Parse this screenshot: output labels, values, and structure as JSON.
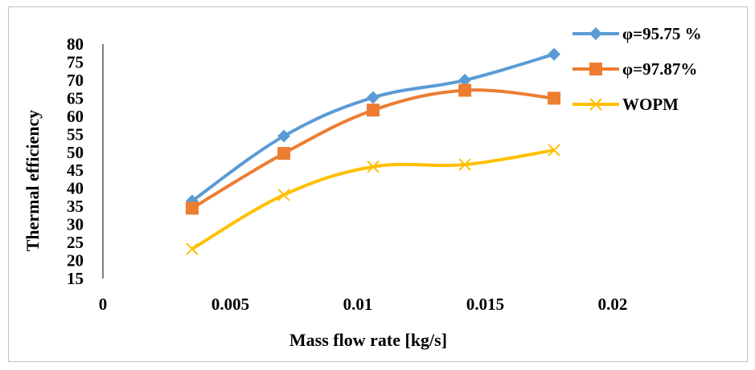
{
  "chart_data": {
    "type": "line",
    "title": "",
    "xlabel": "Mass flow rate [kg/s]",
    "ylabel": "Thermal efficiency",
    "xlim": [
      0,
      0.02
    ],
    "ylim": [
      15,
      80
    ],
    "xticks": [
      0,
      0.005,
      0.01,
      0.015,
      0.02
    ],
    "xtick_labels": [
      "0",
      "0.005",
      "0.01",
      "0.015",
      "0.02"
    ],
    "yticks": [
      15,
      20,
      25,
      30,
      35,
      40,
      45,
      50,
      55,
      60,
      65,
      70,
      75,
      80
    ],
    "grid": false,
    "legend_position": "right",
    "smooth": true,
    "series": [
      {
        "name": "φ=95.75 %",
        "color": "#5B9BD5",
        "marker": "diamond",
        "x": [
          0.0035,
          0.0071,
          0.0106,
          0.0142,
          0.0177
        ],
        "y": [
          36.5,
          54.5,
          65.2,
          70,
          77.2
        ]
      },
      {
        "name": "φ=97.87%",
        "color": "#ED7D31",
        "marker": "square",
        "x": [
          0.0035,
          0.0071,
          0.0106,
          0.0142,
          0.0177
        ],
        "y": [
          34.5,
          49.7,
          61.7,
          67.2,
          65
        ]
      },
      {
        "name": "WOPM",
        "color": "#FFC000",
        "marker": "x",
        "x": [
          0.0035,
          0.0071,
          0.0106,
          0.0142,
          0.0177
        ],
        "y": [
          23.2,
          38.2,
          46,
          46.6,
          50.6
        ]
      }
    ]
  }
}
